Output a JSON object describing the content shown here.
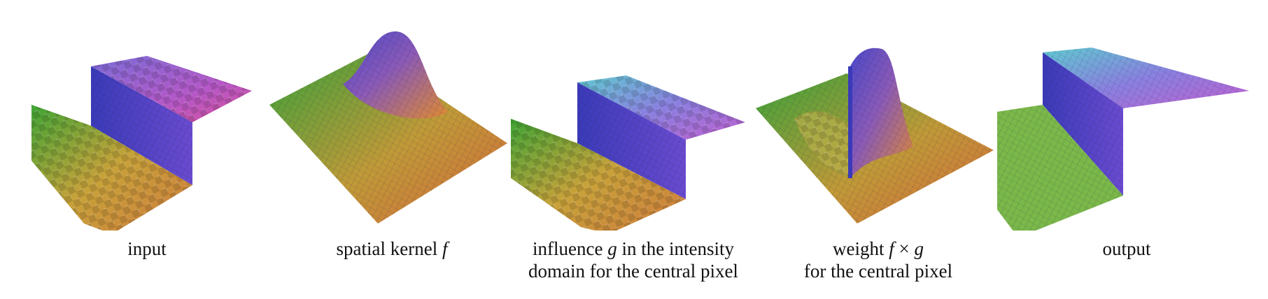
{
  "figure": {
    "panels": [
      {
        "id": "input",
        "caption_lines": [
          {
            "text": "input"
          }
        ]
      },
      {
        "id": "spatial-kernel",
        "caption_lines": [
          {
            "text": "spatial kernel ",
            "italic": "f"
          }
        ]
      },
      {
        "id": "influence",
        "caption_lines": [
          {
            "text": "influence ",
            "italic": "g",
            "rest": " in the intensity"
          },
          {
            "text": "domain for the central pixel"
          }
        ]
      },
      {
        "id": "weight",
        "caption_lines": [
          {
            "text": "weight ",
            "italic": "f",
            "rest": " × ",
            "italic2": "g"
          },
          {
            "text": "for the central pixel"
          }
        ]
      },
      {
        "id": "output",
        "caption_lines": [
          {
            "text": "output"
          }
        ]
      }
    ],
    "colors": {
      "green": "#3fa535",
      "yellow": "#c8c239",
      "orange": "#d98b36",
      "blue": "#4b44c8",
      "purple": "#9a4ed0",
      "magenta": "#d44aa0",
      "cyan": "#6fc6d8",
      "grid": "#202040"
    }
  }
}
